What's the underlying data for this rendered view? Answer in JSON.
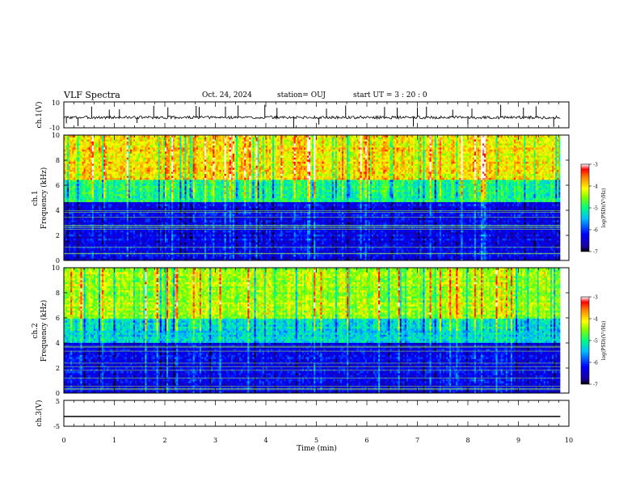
{
  "header": {
    "title": "VLF Spectra",
    "date": "Oct. 24, 2024",
    "station": "station= OUJ",
    "start": "start  UT =   3  : 20 : 0"
  },
  "chart_data": [
    {
      "type": "line",
      "panel": "ch1-waveform",
      "ylabel": "ch.1(V)",
      "ylim": [
        -10,
        10
      ],
      "yticks": [
        "10",
        "-10"
      ],
      "baseline": -2,
      "spikes_min": [
        0.05,
        0.28,
        0.55,
        0.9,
        1.1,
        1.45,
        1.78,
        2.06,
        2.62,
        2.68,
        3.2,
        3.45,
        3.98,
        4.22,
        4.55,
        5.05,
        5.2,
        5.58,
        6.35,
        6.6,
        6.92,
        7.0,
        7.18,
        7.7,
        8.0,
        8.08,
        8.65,
        9.1,
        9.35,
        9.7
      ],
      "xlim": [
        0,
        10
      ]
    },
    {
      "type": "heatmap",
      "panel": "ch1-spectrogram",
      "ylabel_top": "ch.1",
      "ylabel": "Frequency (kHz)",
      "ylim": [
        0,
        10
      ],
      "yticks": [
        "0",
        "2",
        "4",
        "6",
        "8",
        "10"
      ],
      "xlim": [
        0,
        9.83
      ],
      "colorbar": {
        "label": "log(PSD)(V²/Hz)",
        "range": [
          -7,
          -3
        ],
        "ticks": [
          "-3",
          "-4",
          "-5",
          "-6",
          "-7"
        ]
      },
      "band_kHz": [
        {
          "from": 0,
          "to": 4.6,
          "level": -6.3
        },
        {
          "from": 4.6,
          "to": 6.5,
          "level": -5.0
        },
        {
          "from": 6.5,
          "to": 10,
          "level": -4.0
        }
      ],
      "seed": 7
    },
    {
      "type": "heatmap",
      "panel": "ch2-spectrogram",
      "ylabel_top": "ch.2",
      "ylabel": "Frequency (kHz)",
      "ylim": [
        0,
        10
      ],
      "yticks": [
        "0",
        "2",
        "4",
        "6",
        "8",
        "10"
      ],
      "xlim": [
        0,
        9.83
      ],
      "colorbar": {
        "label": "log(PSD)(V²/Hz)",
        "range": [
          -7,
          -3
        ],
        "ticks": [
          "-3",
          "-4",
          "-5",
          "-6",
          "-7"
        ]
      },
      "band_kHz": [
        {
          "from": 0,
          "to": 4.0,
          "level": -6.3
        },
        {
          "from": 4.0,
          "to": 6.0,
          "level": -5.3
        },
        {
          "from": 6.0,
          "to": 10,
          "level": -4.4
        }
      ],
      "seed": 19
    },
    {
      "type": "line",
      "panel": "ch3-waveform",
      "ylabel": "ch.3(V)",
      "ylim": [
        -5,
        5
      ],
      "yticks": [
        "5",
        "-5"
      ],
      "constant_value": -1.2,
      "xlim": [
        0,
        10
      ]
    }
  ],
  "xaxis": {
    "label": "Time (min)",
    "ticks": [
      "0",
      "1",
      "2",
      "3",
      "4",
      "5",
      "6",
      "7",
      "8",
      "9",
      "10"
    ],
    "range": [
      0,
      10
    ]
  }
}
